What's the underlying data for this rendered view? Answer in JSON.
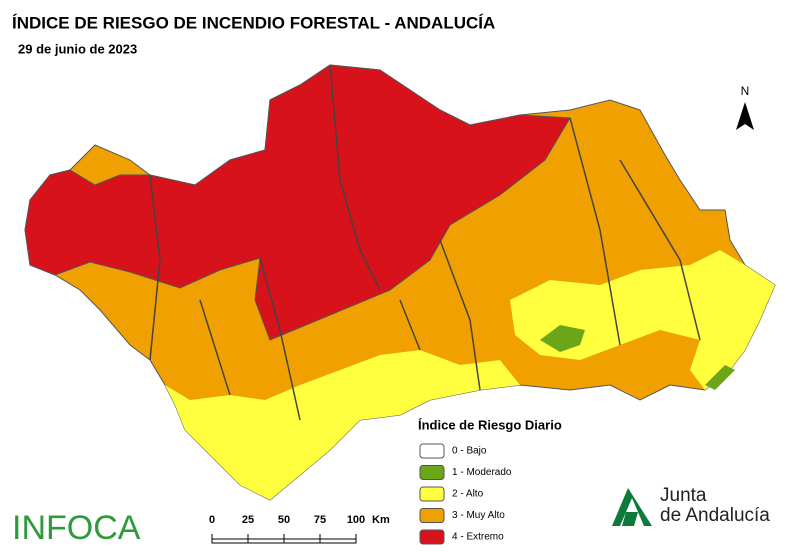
{
  "title": "ÍNDICE DE RIESGO DE INCENDIO FORESTAL - ANDALUCÍA",
  "date": "29 de junio de 2023",
  "north": "N",
  "legend": {
    "title": "Índice de Riesgo Diario",
    "items": [
      {
        "label": "0 - Bajo",
        "color": "#ffffff"
      },
      {
        "label": "1 - Moderado",
        "color": "#6aa617"
      },
      {
        "label": "2 - Alto",
        "color": "#ffff40"
      },
      {
        "label": "3 - Muy Alto",
        "color": "#f0a000"
      },
      {
        "label": "4 - Extremo",
        "color": "#d7121a"
      }
    ]
  },
  "scale": {
    "ticks": [
      0,
      25,
      50,
      75,
      100
    ],
    "unit": "Km"
  },
  "logos": {
    "infoca": "INFOCA",
    "junta_line1": "Junta",
    "junta_line2": "de Andalucía"
  }
}
